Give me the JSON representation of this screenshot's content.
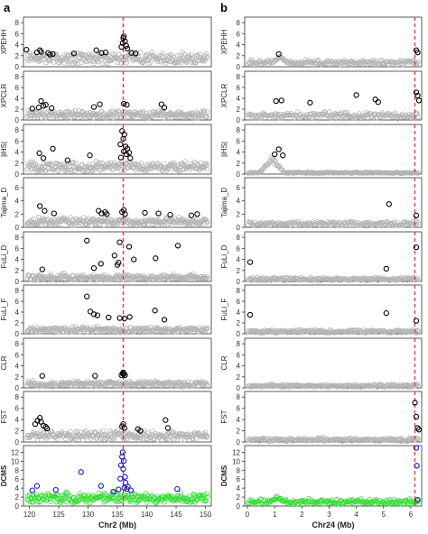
{
  "panel_labels": [
    "a",
    "b"
  ],
  "colors": {
    "background_points": "#b3b3b3",
    "outlier_points": "#000000",
    "dcms_background": "#33dd33",
    "dcms_outliers": "#1111cc",
    "reference_line": "#e83030",
    "axis": "#333333"
  },
  "chart_data": [
    {
      "type": "scatter",
      "panel": "a",
      "xlabel": "Chr2 (Mb)",
      "xlim": [
        119,
        151
      ],
      "xticks": [
        120,
        125,
        130,
        135,
        140,
        145,
        150
      ],
      "reference_line_x": 136,
      "tracks": [
        {
          "name": "XPEHH",
          "ylim": [
            0,
            9
          ],
          "yticks": [
            0,
            2,
            4,
            6,
            8
          ],
          "baseline": [
            0.4,
            2.2
          ],
          "background_noise": 0.9,
          "outliers": [
            [
              119.5,
              3.1
            ],
            [
              121.3,
              2.6
            ],
            [
              121.8,
              3.0
            ],
            [
              122.0,
              2.7
            ],
            [
              123.2,
              2.5
            ],
            [
              123.5,
              2.2
            ],
            [
              124.0,
              2.3
            ],
            [
              127.6,
              2.4
            ],
            [
              131.4,
              3.0
            ],
            [
              132.3,
              2.5
            ],
            [
              133.0,
              2.6
            ],
            [
              135.7,
              3.6
            ],
            [
              135.9,
              4.3
            ],
            [
              136.0,
              5.2
            ],
            [
              136.1,
              5.5
            ],
            [
              136.3,
              4.6
            ],
            [
              136.5,
              3.8
            ],
            [
              136.7,
              3.3
            ],
            [
              137.4,
              2.5
            ],
            [
              138.1,
              2.4
            ]
          ]
        },
        {
          "name": "XPCLR",
          "ylim": [
            0,
            9
          ],
          "yticks": [
            0,
            2,
            4,
            6,
            8
          ],
          "baseline": [
            0.3,
            1.4
          ],
          "background_noise": 0.6,
          "outliers": [
            [
              120.5,
              2.1
            ],
            [
              121.6,
              2.3
            ],
            [
              122.0,
              3.5
            ],
            [
              122.4,
              2.6
            ],
            [
              122.8,
              2.8
            ],
            [
              123.8,
              2.2
            ],
            [
              131.0,
              2.4
            ],
            [
              132.0,
              2.9
            ],
            [
              136.1,
              3.0
            ],
            [
              136.6,
              2.8
            ],
            [
              142.5,
              2.9
            ],
            [
              143.0,
              2.3
            ]
          ]
        },
        {
          "name": "|iHS|",
          "ylim": [
            0,
            9
          ],
          "yticks": [
            0,
            2,
            4,
            6,
            8
          ],
          "baseline": [
            0.4,
            1.9
          ],
          "background_noise": 0.8,
          "outliers": [
            [
              121.7,
              3.8
            ],
            [
              122.4,
              2.9
            ],
            [
              124.0,
              4.6
            ],
            [
              126.5,
              2.5
            ],
            [
              130.3,
              3.4
            ],
            [
              135.5,
              5.4
            ],
            [
              135.6,
              3.0
            ],
            [
              135.8,
              7.8
            ],
            [
              136.0,
              6.4
            ],
            [
              136.1,
              4.1
            ],
            [
              136.2,
              7.2
            ],
            [
              136.4,
              5.0
            ],
            [
              136.5,
              3.6
            ],
            [
              136.7,
              4.6
            ],
            [
              137.0,
              3.9
            ],
            [
              137.2,
              2.9
            ]
          ]
        },
        {
          "name": "Tajima_D",
          "ylim": [
            0,
            7.5
          ],
          "yticks": [
            0,
            2,
            4,
            6
          ],
          "baseline": [
            0.2,
            1.1
          ],
          "background_noise": 0.6,
          "outliers": [
            [
              121.8,
              3.2
            ],
            [
              122.6,
              2.5
            ],
            [
              124.2,
              2.1
            ],
            [
              131.8,
              2.5
            ],
            [
              132.3,
              2.1
            ],
            [
              132.9,
              2.3
            ],
            [
              133.2,
              2.0
            ],
            [
              135.8,
              2.3
            ],
            [
              136.1,
              2.6
            ],
            [
              136.3,
              2.0
            ],
            [
              139.7,
              2.2
            ],
            [
              142.0,
              2.1
            ],
            [
              144.0,
              1.9
            ],
            [
              147.6,
              1.8
            ],
            [
              148.6,
              2.0
            ]
          ]
        },
        {
          "name": "FuLi_D",
          "ylim": [
            0,
            9
          ],
          "yticks": [
            0,
            2,
            4,
            6,
            8
          ],
          "baseline": [
            0.2,
            1.0
          ],
          "background_noise": 0.6,
          "outliers": [
            [
              122.2,
              2.2
            ],
            [
              129.8,
              7.4
            ],
            [
              131.0,
              2.4
            ],
            [
              132.2,
              3.2
            ],
            [
              134.5,
              4.7
            ],
            [
              135.0,
              3.0
            ],
            [
              135.2,
              3.4
            ],
            [
              135.4,
              7.1
            ],
            [
              137.0,
              6.3
            ],
            [
              137.8,
              4.0
            ],
            [
              141.5,
              4.2
            ],
            [
              145.3,
              6.5
            ]
          ]
        },
        {
          "name": "FuLi_F",
          "ylim": [
            0,
            9
          ],
          "yticks": [
            0,
            2,
            4,
            6,
            8
          ],
          "baseline": [
            0.2,
            1.0
          ],
          "background_noise": 0.6,
          "outliers": [
            [
              129.8,
              6.9
            ],
            [
              130.4,
              4.1
            ],
            [
              131.0,
              3.6
            ],
            [
              131.6,
              3.4
            ],
            [
              133.5,
              3.0
            ],
            [
              135.4,
              2.9
            ],
            [
              136.2,
              2.8
            ],
            [
              137.1,
              3.1
            ],
            [
              141.4,
              4.3
            ],
            [
              143.0,
              2.6
            ]
          ]
        },
        {
          "name": "CLR",
          "ylim": [
            0,
            9
          ],
          "yticks": [
            0,
            2,
            4,
            6,
            8
          ],
          "baseline": [
            0.2,
            1.0
          ],
          "background_noise": 0.5,
          "outliers": [
            [
              122.2,
              2.2
            ],
            [
              131.2,
              2.2
            ],
            [
              135.7,
              2.3
            ],
            [
              135.9,
              2.6
            ],
            [
              136.0,
              2.8
            ],
            [
              136.1,
              2.5
            ],
            [
              136.3,
              2.3
            ]
          ]
        },
        {
          "name": "FST",
          "ylim": [
            0,
            9
          ],
          "yticks": [
            0,
            2,
            4,
            6,
            8
          ],
          "baseline": [
            0.3,
            1.6
          ],
          "background_noise": 0.8,
          "outliers": [
            [
              121.0,
              3.2
            ],
            [
              121.4,
              3.8
            ],
            [
              121.8,
              4.3
            ],
            [
              122.0,
              3.6
            ],
            [
              122.4,
              2.9
            ],
            [
              122.8,
              2.7
            ],
            [
              123.0,
              2.4
            ],
            [
              135.8,
              2.8
            ],
            [
              136.0,
              3.2
            ],
            [
              136.2,
              2.5
            ],
            [
              138.5,
              2.3
            ],
            [
              138.9,
              2.0
            ],
            [
              143.2,
              3.9
            ],
            [
              143.6,
              2.5
            ]
          ]
        },
        {
          "name": "DCMS",
          "ylim": [
            0,
            13.5
          ],
          "yticks": [
            0,
            2,
            4,
            6,
            8,
            10,
            12
          ],
          "baseline": [
            0.6,
            2.4
          ],
          "background_noise": 1.2,
          "outliers": [
            [
              120.5,
              3.5
            ],
            [
              121.3,
              4.5
            ],
            [
              124.5,
              3.6
            ],
            [
              128.8,
              7.6
            ],
            [
              132.2,
              4.5
            ],
            [
              134.3,
              3.2
            ],
            [
              135.2,
              3.7
            ],
            [
              135.5,
              6.1
            ],
            [
              135.6,
              9.1
            ],
            [
              135.8,
              11.0
            ],
            [
              135.9,
              12.0
            ],
            [
              136.0,
              8.3
            ],
            [
              136.1,
              10.1
            ],
            [
              136.2,
              4.1
            ],
            [
              136.3,
              6.5
            ],
            [
              136.4,
              5.2
            ],
            [
              136.6,
              3.8
            ],
            [
              136.8,
              4.3
            ],
            [
              137.3,
              3.5
            ],
            [
              145.2,
              3.8
            ]
          ]
        }
      ]
    },
    {
      "type": "scatter",
      "panel": "b",
      "xlabel": "Chr24 (Mb)",
      "xlim": [
        -0.1,
        6.4
      ],
      "xticks": [
        0,
        1,
        2,
        3,
        4,
        5,
        6
      ],
      "reference_line_x": 6.15,
      "tracks": [
        {
          "name": "XPEHH",
          "ylim": [
            0,
            9
          ],
          "yticks": [
            0,
            2,
            4,
            6,
            8
          ],
          "baseline": [
            0.3,
            1.0
          ],
          "background_noise": 0.5,
          "bump": [
            1.2,
            2.0
          ],
          "outliers": [
            [
              1.15,
              2.3
            ],
            [
              6.2,
              3.0
            ],
            [
              6.25,
              2.6
            ]
          ]
        },
        {
          "name": "XPCLR",
          "ylim": [
            0,
            9
          ],
          "yticks": [
            0,
            2,
            4,
            6,
            8
          ],
          "baseline": [
            0.2,
            1.1
          ],
          "background_noise": 0.6,
          "outliers": [
            [
              1.05,
              3.5
            ],
            [
              1.25,
              3.6
            ],
            [
              2.3,
              3.2
            ],
            [
              4.0,
              4.6
            ],
            [
              4.7,
              3.8
            ],
            [
              4.8,
              3.3
            ],
            [
              6.2,
              5.1
            ],
            [
              6.25,
              4.5
            ],
            [
              6.3,
              3.6
            ]
          ]
        },
        {
          "name": "|iHS|",
          "ylim": [
            0,
            9
          ],
          "yticks": [
            0,
            2,
            4,
            6,
            8
          ],
          "baseline": [
            0.1,
            0.3
          ],
          "background_noise": 0.2,
          "bump": [
            0.9,
            3.2
          ],
          "outliers": [
            [
              1.0,
              3.6
            ],
            [
              1.15,
              4.5
            ],
            [
              1.3,
              3.4
            ]
          ]
        },
        {
          "name": "Tajima_D",
          "ylim": [
            0,
            7.5
          ],
          "yticks": [
            0,
            2,
            4,
            6
          ],
          "baseline": [
            0.2,
            0.7
          ],
          "background_noise": 0.4,
          "outliers": [
            [
              5.2,
              3.5
            ],
            [
              6.2,
              1.8
            ]
          ]
        },
        {
          "name": "FuLi_D",
          "ylim": [
            0,
            9
          ],
          "yticks": [
            0,
            2,
            4,
            6,
            8
          ],
          "baseline": [
            0.1,
            0.6
          ],
          "background_noise": 0.3,
          "outliers": [
            [
              0.1,
              3.5
            ],
            [
              5.1,
              2.3
            ],
            [
              6.2,
              6.2
            ]
          ]
        },
        {
          "name": "FuLi_F",
          "ylim": [
            0,
            9
          ],
          "yticks": [
            0,
            2,
            4,
            6,
            8
          ],
          "baseline": [
            0.1,
            0.6
          ],
          "background_noise": 0.3,
          "outliers": [
            [
              0.1,
              3.5
            ],
            [
              5.1,
              3.8
            ],
            [
              6.2,
              2.4
            ]
          ]
        },
        {
          "name": "CLR",
          "ylim": [
            0,
            9
          ],
          "yticks": [
            0,
            2,
            4,
            6,
            8
          ],
          "baseline": [
            0.1,
            0.5
          ],
          "background_noise": 0.3,
          "outliers": []
        },
        {
          "name": "FST",
          "ylim": [
            0,
            9
          ],
          "yticks": [
            0,
            2,
            4,
            6,
            8
          ],
          "baseline": [
            0.1,
            0.6
          ],
          "background_noise": 0.3,
          "outliers": [
            [
              6.15,
              7.0
            ],
            [
              6.2,
              4.5
            ],
            [
              6.25,
              2.5
            ],
            [
              6.3,
              2.2
            ]
          ]
        },
        {
          "name": "DCMS",
          "ylim": [
            0,
            13.5
          ],
          "yticks": [
            0,
            2,
            4,
            6,
            8,
            10,
            12
          ],
          "baseline": [
            0.3,
            1.2
          ],
          "background_noise": 0.8,
          "bump": [
            1.1,
            2.3
          ],
          "outliers": [
            [
              6.2,
              13.0
            ],
            [
              6.22,
              9.0
            ],
            [
              6.25,
              1.4
            ]
          ]
        }
      ]
    }
  ]
}
